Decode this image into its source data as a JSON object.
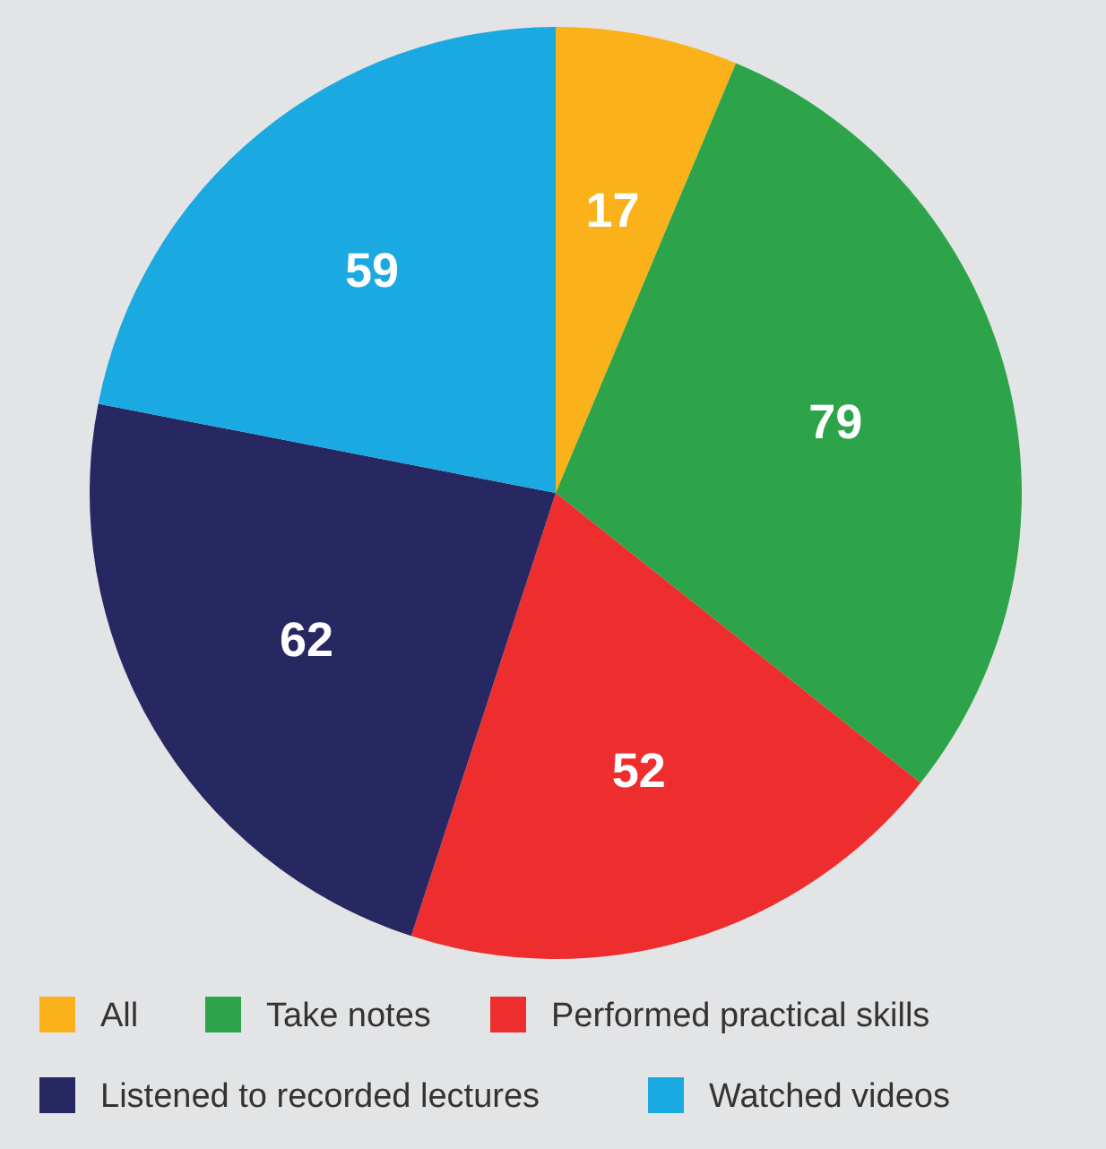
{
  "chart_data": {
    "type": "pie",
    "categories": [
      "All",
      "Take notes",
      "Performed practical skills",
      "Listened to recorded lectures",
      "Watched videos"
    ],
    "values": [
      17,
      79,
      52,
      62,
      59
    ],
    "colors": [
      "#fbb21a",
      "#2ea44a",
      "#ee2e2e",
      "#272862",
      "#1aa9e1"
    ],
    "data_labels": true,
    "legend": "bottom"
  }
}
